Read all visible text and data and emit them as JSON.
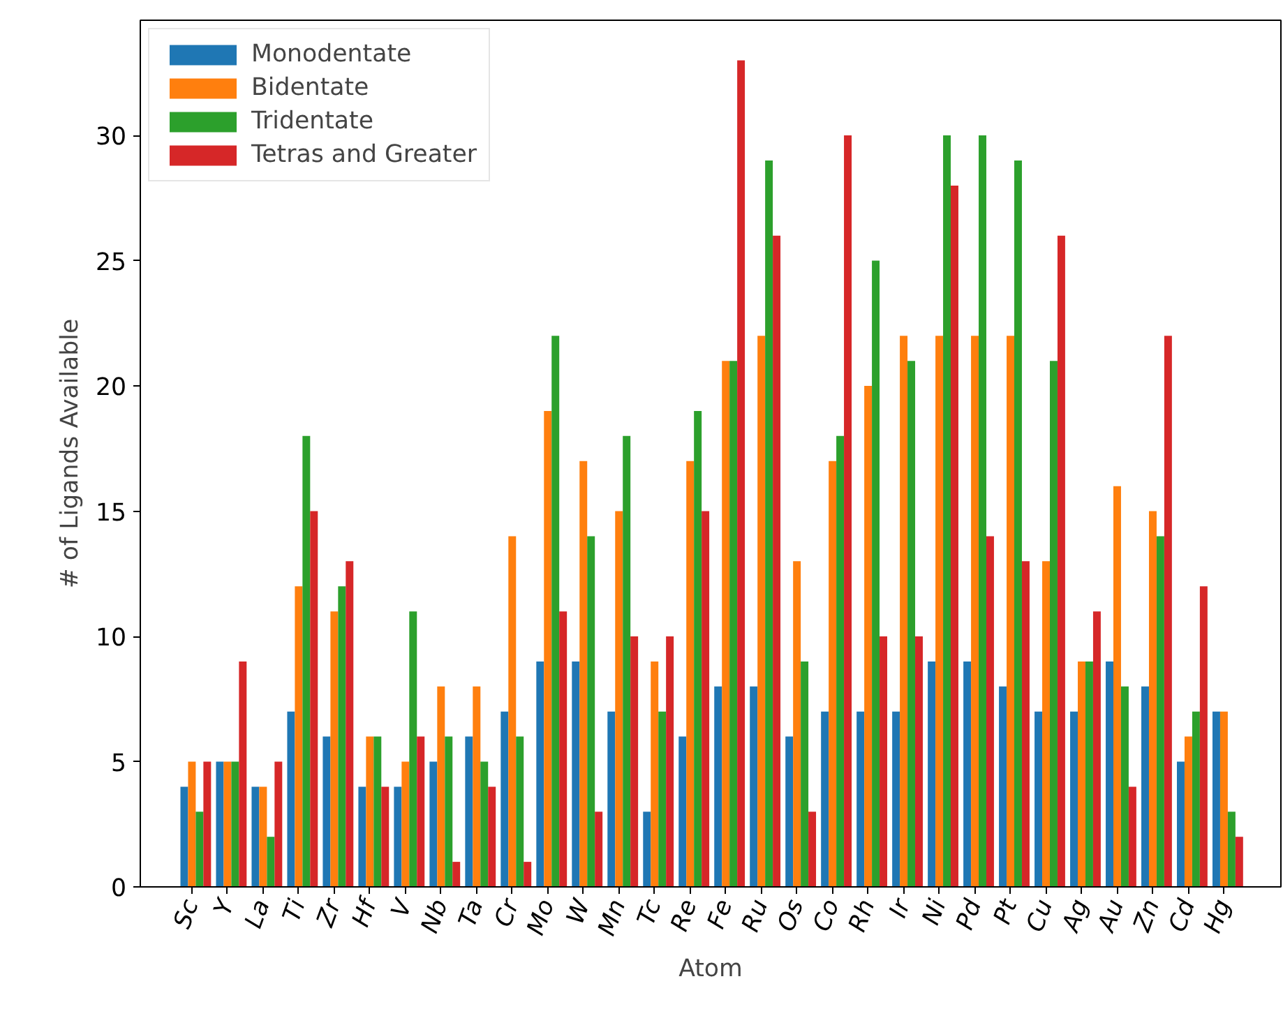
{
  "chart_data": {
    "type": "bar",
    "xlabel": "Atom",
    "ylabel": "# of Ligands Available",
    "categories": [
      "Sc",
      "Y",
      "La",
      "Ti",
      "Zr",
      "Hf",
      "V",
      "Nb",
      "Ta",
      "Cr",
      "Mo",
      "W",
      "Mn",
      "Tc",
      "Re",
      "Fe",
      "Ru",
      "Os",
      "Co",
      "Rh",
      "Ir",
      "Ni",
      "Pd",
      "Pt",
      "Cu",
      "Ag",
      "Au",
      "Zn",
      "Cd",
      "Hg"
    ],
    "series": [
      {
        "name": "Monodentate",
        "color": "#1f77b4",
        "values": [
          4,
          5,
          4,
          7,
          6,
          4,
          4,
          5,
          6,
          7,
          9,
          9,
          7,
          3,
          6,
          8,
          8,
          6,
          7,
          7,
          7,
          9,
          9,
          8,
          7,
          7,
          9,
          8,
          5,
          7
        ]
      },
      {
        "name": "Bidentate",
        "color": "#ff7f0e",
        "values": [
          5,
          5,
          4,
          12,
          11,
          6,
          5,
          8,
          8,
          14,
          19,
          17,
          15,
          9,
          17,
          21,
          22,
          13,
          17,
          20,
          22,
          22,
          22,
          22,
          13,
          9,
          16,
          15,
          6,
          7
        ]
      },
      {
        "name": "Tridentate",
        "color": "#2ca02c",
        "values": [
          3,
          5,
          2,
          18,
          12,
          6,
          11,
          6,
          5,
          6,
          22,
          14,
          18,
          7,
          19,
          21,
          29,
          9,
          18,
          25,
          21,
          30,
          30,
          29,
          21,
          9,
          8,
          14,
          7,
          3
        ]
      },
      {
        "name": "Tetras and Greater",
        "color": "#d62728",
        "values": [
          5,
          9,
          5,
          15,
          13,
          4,
          6,
          1,
          4,
          1,
          11,
          3,
          10,
          10,
          15,
          33,
          26,
          3,
          30,
          10,
          10,
          28,
          14,
          13,
          26,
          11,
          4,
          22,
          12,
          2
        ]
      }
    ],
    "ylim": [
      0,
      34.6
    ],
    "yticks": [
      0,
      5,
      10,
      15,
      20,
      25,
      30
    ],
    "grid": false,
    "legend": "top left"
  }
}
